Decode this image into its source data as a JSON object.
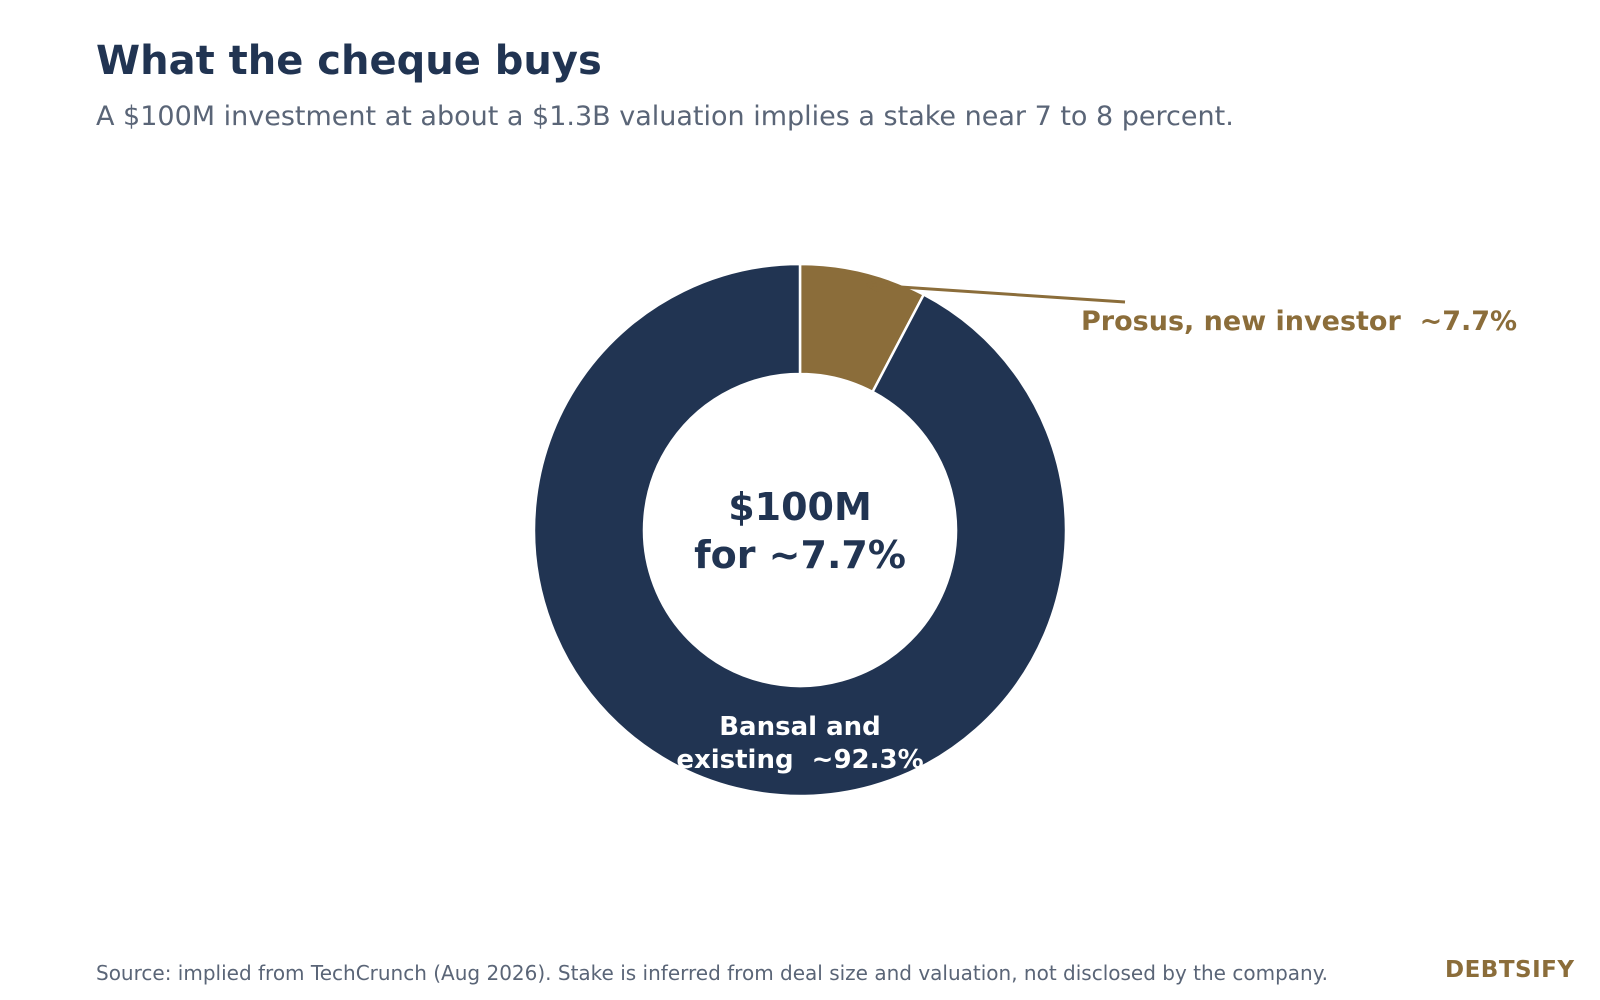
{
  "title": "What the cheque buys",
  "subtitle": "A $100M investment at about a $1.3B valuation implies a stake near 7 to 8 percent.",
  "source": "Source: implied from TechCrunch (Aug 2026). Stake is inferred from deal size and valuation, not disclosed by the company.",
  "brand": "DEBTSIFY",
  "colors": {
    "navy": "#213452",
    "gold": "#8b6d3a",
    "gray": "#5a6577",
    "white": "#ffffff"
  },
  "chart_data": {
    "type": "pie",
    "variant": "donut",
    "center_text": [
      "$100M",
      "for ~7.7%"
    ],
    "slices": [
      {
        "name": "Prosus, new investor",
        "value": 7.7,
        "label": "Prosus, new investor  ~7.7%",
        "color": "#8b6d3a"
      },
      {
        "name": "Bansal and existing",
        "value": 92.3,
        "label_lines": [
          "Bansal and",
          "existing  ~92.3%"
        ],
        "color": "#213452"
      }
    ]
  }
}
